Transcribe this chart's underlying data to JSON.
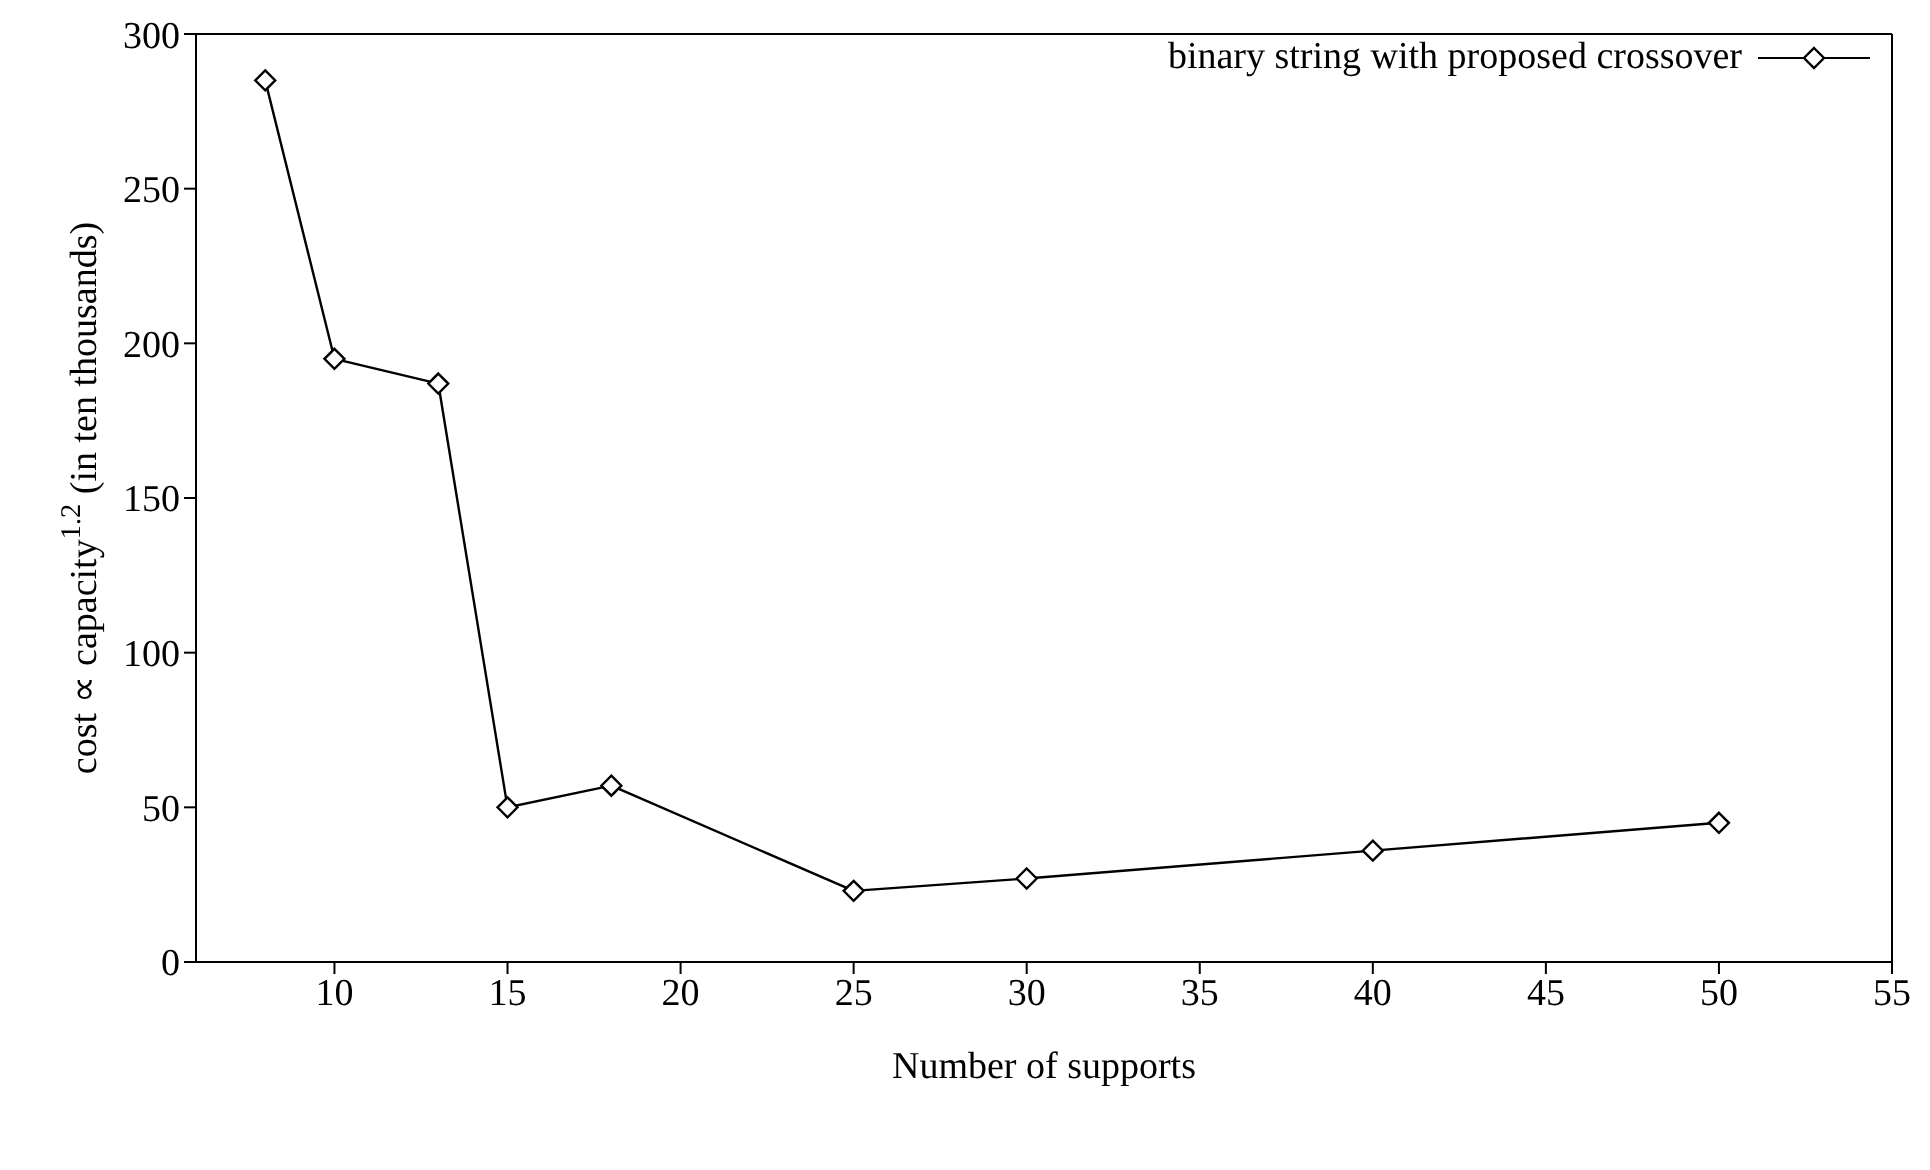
{
  "chart_data": {
    "type": "line",
    "xlabel": "Number of supports",
    "ylabel": "cost ∝ capacity$^{1.2}$ (in ten thousands)",
    "x": [
      8,
      10,
      13,
      15,
      18,
      25,
      30,
      40,
      50
    ],
    "series": [
      {
        "name": "binary string with proposed crossover",
        "color": "#000000",
        "values": [
          285,
          195,
          187,
          50,
          57,
          23,
          27,
          36,
          45
        ]
      }
    ],
    "xlim": [
      6,
      55
    ],
    "xticks": [
      10,
      15,
      20,
      25,
      30,
      35,
      40,
      45,
      50,
      55
    ],
    "ylim": [
      0,
      300
    ],
    "yticks": [
      0,
      50,
      100,
      150,
      200,
      250,
      300
    ],
    "marker": "diamond",
    "line_style": "solid",
    "grid": false,
    "legend": "top right"
  }
}
